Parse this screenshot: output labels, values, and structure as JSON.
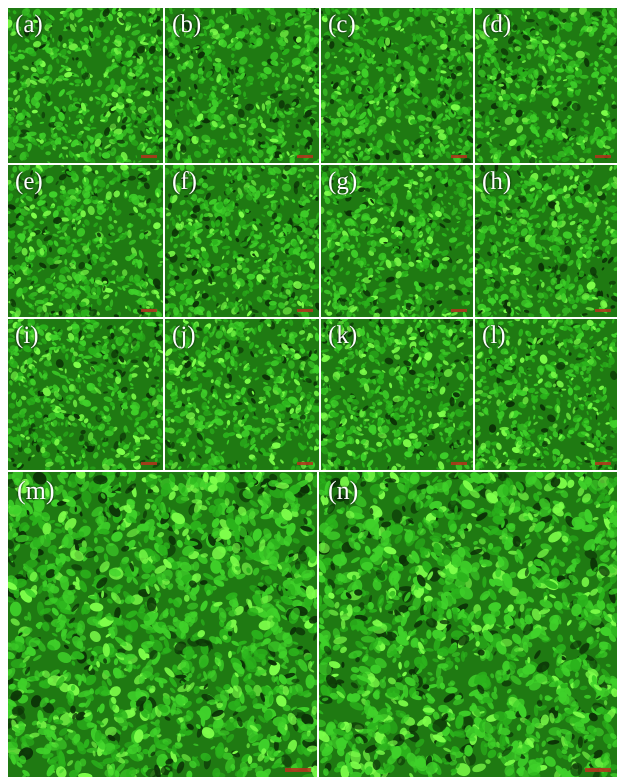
{
  "figure": {
    "panels_small": [
      {
        "label": "(a)"
      },
      {
        "label": "(b)"
      },
      {
        "label": "(c)"
      },
      {
        "label": "(d)"
      },
      {
        "label": "(e)"
      },
      {
        "label": "(f)"
      },
      {
        "label": "(g)"
      },
      {
        "label": "(h)"
      },
      {
        "label": "(i)"
      },
      {
        "label": "(j)"
      },
      {
        "label": "(k)"
      },
      {
        "label": "(l)"
      }
    ],
    "panels_large": [
      {
        "label": "(m)"
      },
      {
        "label": "(n)"
      }
    ],
    "colors": {
      "background": "#0a2a06",
      "cell": "#3fd12a",
      "cell_bright": "#7dff4a",
      "scalebar": "#b5341c",
      "divider": "#ffffff"
    }
  }
}
